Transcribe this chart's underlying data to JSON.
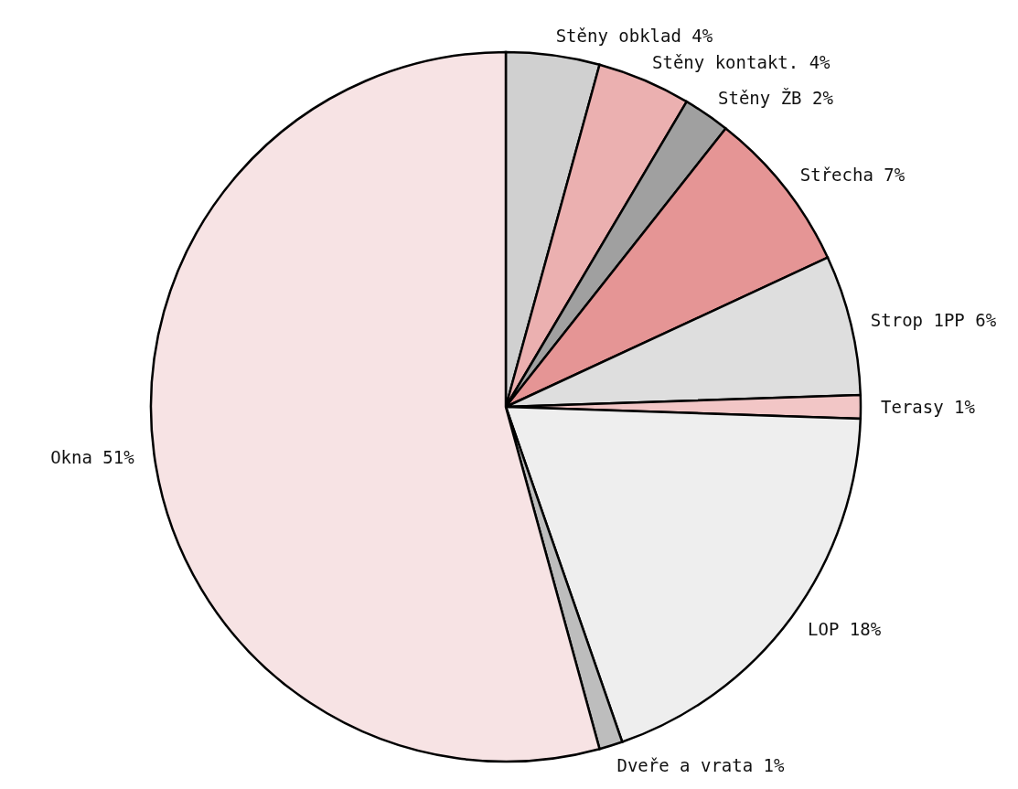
{
  "chart_data": {
    "type": "pie",
    "categories": [
      "Stěny obklad",
      "Stěny kontakt.",
      "Stěny ŽB",
      "Střecha",
      "Strop 1PP",
      "Terasy",
      "LOP",
      "Dveře a vrata",
      "Okna"
    ],
    "values": [
      4,
      4,
      2,
      7,
      6,
      1,
      18,
      1,
      51
    ],
    "value_labels": [
      "4%",
      "4%",
      "2%",
      "7%",
      "6%",
      "1%",
      "18%",
      "1%",
      "51%"
    ],
    "colors": [
      "#d0d0d0",
      "#ebb0b0",
      "#a0a0a0",
      "#e59595",
      "#dedede",
      "#f2c6c6",
      "#eeeeee",
      "#bdbdbd",
      "#f7e3e4"
    ],
    "legend": false
  }
}
